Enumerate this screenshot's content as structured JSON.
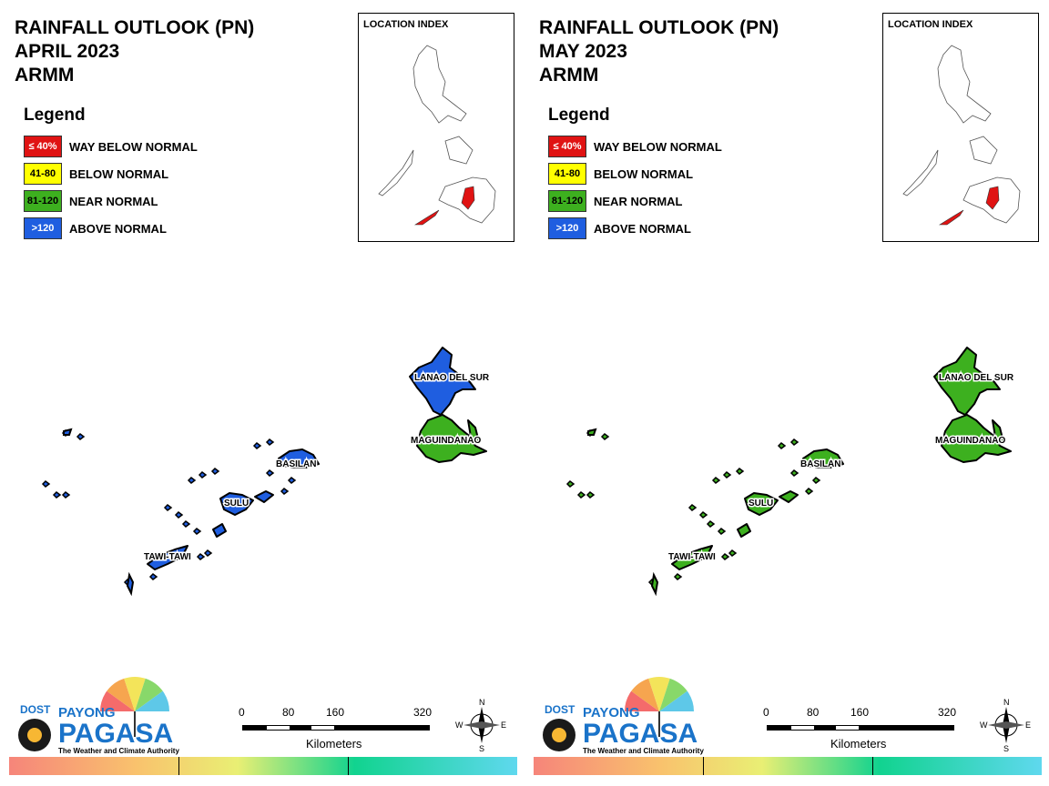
{
  "panels": [
    {
      "title_line1": "RAINFALL OUTLOOK (PN)",
      "title_line2": "APRIL 2023",
      "title_line3": "ARMM",
      "region_colors": {
        "lanao": "#1f5ee0",
        "maguindanao": "#3db01f",
        "basilan": "#1f5ee0",
        "sulu": "#1f5ee0",
        "tawi": "#1f5ee0"
      }
    },
    {
      "title_line1": "RAINFALL OUTLOOK (PN)",
      "title_line2": "MAY 2023",
      "title_line3": "ARMM",
      "region_colors": {
        "lanao": "#3db01f",
        "maguindanao": "#3db01f",
        "basilan": "#3db01f",
        "sulu": "#3db01f",
        "tawi": "#3db01f"
      }
    }
  ],
  "legend": {
    "title": "Legend",
    "items": [
      {
        "code": "≤ 40%",
        "label": "WAY BELOW NORMAL",
        "color": "#e01313",
        "text_color": "#ffffff"
      },
      {
        "code": "41-80",
        "label": "BELOW NORMAL",
        "color": "#ffff00",
        "text_color": "#000000"
      },
      {
        "code": "81-120",
        "label": "NEAR NORMAL",
        "color": "#3db01f",
        "text_color": "#000000"
      },
      {
        "code": ">120",
        "label": "ABOVE NORMAL",
        "color": "#1f5ee0",
        "text_color": "#ffffff"
      }
    ]
  },
  "location_index": {
    "title": "LOCATION INDEX",
    "highlight_color": "#e01313"
  },
  "provinces": {
    "lanao": "LANAO DEL SUR",
    "maguindanao": "MAGUINDANAO",
    "basilan": "BASILAN",
    "sulu": "SULU",
    "tawi": "TAWI-TAWI"
  },
  "logo": {
    "dost": "DOST",
    "payong": "PAYONG",
    "pagasa": "PAGASA",
    "tagline": "The Weather and Climate Authority"
  },
  "scale": {
    "ticks": [
      "0",
      "80",
      "160",
      "320"
    ],
    "unit": "Kilometers"
  },
  "compass": {
    "n": "N",
    "s": "S",
    "e": "E",
    "w": "W"
  }
}
